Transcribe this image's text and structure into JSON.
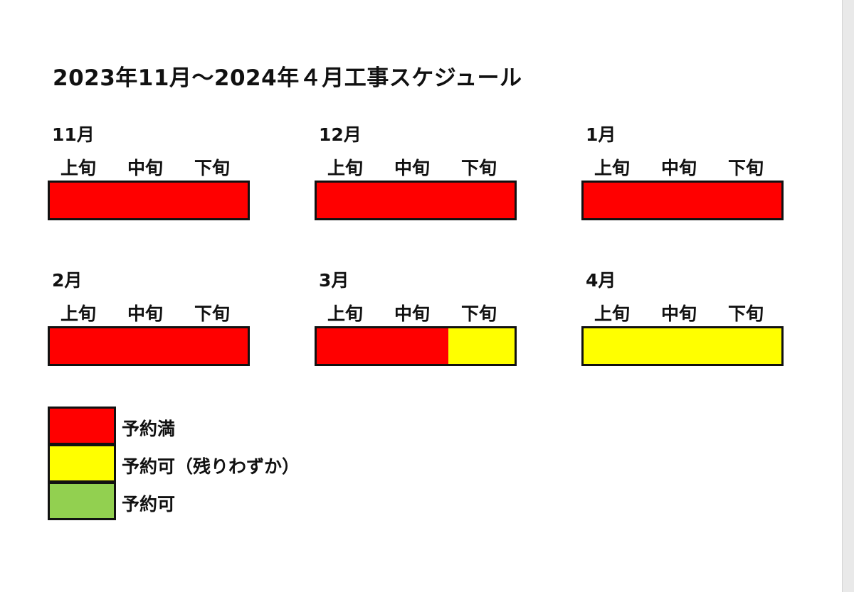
{
  "title": "2023年11月～2024年４月工事スケジュール",
  "periods": [
    "上旬",
    "中旬",
    "下旬"
  ],
  "status_colors": {
    "full": "#ff0000",
    "few_left": "#ffff00",
    "available": "#92d050"
  },
  "months": [
    {
      "label": "11月",
      "status": [
        "full",
        "full",
        "full"
      ]
    },
    {
      "label": "12月",
      "status": [
        "full",
        "full",
        "full"
      ]
    },
    {
      "label": "1月",
      "status": [
        "full",
        "full",
        "full"
      ]
    },
    {
      "label": "2月",
      "status": [
        "full",
        "full",
        "full"
      ]
    },
    {
      "label": "3月",
      "status": [
        "full",
        "full",
        "few_left"
      ]
    },
    {
      "label": "4月",
      "status": [
        "few_left",
        "few_left",
        "few_left"
      ]
    }
  ],
  "legend": [
    {
      "key": "full",
      "label": "予約満"
    },
    {
      "key": "few_left",
      "label": "予約可（残りわずか）"
    },
    {
      "key": "available",
      "label": "予約可"
    }
  ]
}
